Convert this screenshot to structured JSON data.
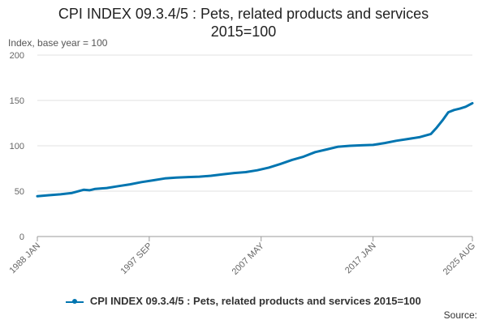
{
  "chart_data": {
    "type": "line",
    "title": "CPI INDEX 09.3.4/5 : Pets, related products and services 2015=100",
    "title_lines": [
      "CPI INDEX 09.3.4/5 : Pets, related products and services",
      "2015=100"
    ],
    "ylabel": "Index, base year = 100",
    "ylim": [
      0,
      200
    ],
    "yticks": [
      0,
      50,
      100,
      150,
      200
    ],
    "x_range": [
      1988.0,
      2025.583
    ],
    "xticks": [
      {
        "label": "1988 JAN",
        "value": 1988.0
      },
      {
        "label": "1997 SEP",
        "value": 1997.667
      },
      {
        "label": "2007 MAY",
        "value": 2007.333
      },
      {
        "label": "2017 JAN",
        "value": 2017.0
      },
      {
        "label": "2025 AUG",
        "value": 2025.583
      }
    ],
    "grid": true,
    "series": [
      {
        "name": "CPI INDEX 09.3.4/5 : Pets, related products and services 2015=100",
        "color": "#0075b0",
        "points": [
          [
            1988.0,
            44.5
          ],
          [
            1989.0,
            45.5
          ],
          [
            1990.0,
            46.5
          ],
          [
            1991.0,
            48.0
          ],
          [
            1992.0,
            51.5
          ],
          [
            1992.5,
            51.0
          ],
          [
            1993.0,
            52.5
          ],
          [
            1994.0,
            53.5
          ],
          [
            1995.0,
            55.5
          ],
          [
            1996.0,
            57.5
          ],
          [
            1997.0,
            60.0
          ],
          [
            1998.0,
            62.0
          ],
          [
            1999.0,
            64.0
          ],
          [
            2000.0,
            65.0
          ],
          [
            2001.0,
            65.5
          ],
          [
            2002.0,
            66.0
          ],
          [
            2003.0,
            67.0
          ],
          [
            2004.0,
            68.5
          ],
          [
            2005.0,
            70.0
          ],
          [
            2006.0,
            71.0
          ],
          [
            2007.0,
            73.0
          ],
          [
            2008.0,
            76.0
          ],
          [
            2009.0,
            80.0
          ],
          [
            2010.0,
            84.5
          ],
          [
            2011.0,
            88.0
          ],
          [
            2012.0,
            93.0
          ],
          [
            2013.0,
            96.0
          ],
          [
            2014.0,
            99.0
          ],
          [
            2015.0,
            100.0
          ],
          [
            2016.0,
            100.5
          ],
          [
            2017.0,
            101.0
          ],
          [
            2018.0,
            103.0
          ],
          [
            2019.0,
            105.5
          ],
          [
            2020.0,
            107.5
          ],
          [
            2021.0,
            109.5
          ],
          [
            2022.0,
            113.0
          ],
          [
            2022.5,
            120.0
          ],
          [
            2023.0,
            128.0
          ],
          [
            2023.5,
            137.0
          ],
          [
            2024.0,
            139.5
          ],
          [
            2024.5,
            141.0
          ],
          [
            2025.0,
            143.0
          ],
          [
            2025.583,
            147.0
          ]
        ]
      }
    ]
  },
  "legend": {
    "label": "CPI INDEX 09.3.4/5 : Pets, related products and services 2015=100"
  },
  "source": "Source:"
}
